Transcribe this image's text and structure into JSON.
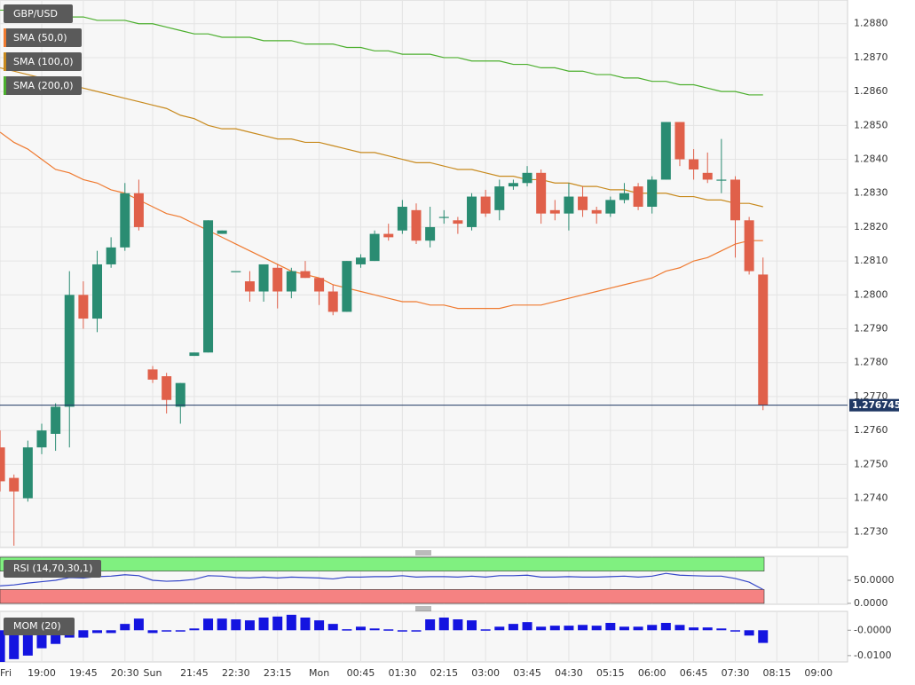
{
  "chart_data": [
    {
      "type": "candlestick",
      "symbol": "GBP/USD",
      "categories": [
        "Fri",
        null,
        null,
        "19:00",
        null,
        null,
        "19:45",
        null,
        null,
        "20:30",
        null,
        "Sun",
        null,
        null,
        "21:45",
        null,
        null,
        "22:30",
        null,
        null,
        "23:15",
        null,
        null,
        "Mon",
        null,
        null,
        "00:45",
        null,
        null,
        "01:30",
        null,
        null,
        "02:15",
        null,
        null,
        "03:00",
        null,
        null,
        "03:45",
        null,
        null,
        "04:30",
        null,
        null,
        "05:15",
        null,
        null,
        "06:00",
        null,
        null,
        "06:45",
        null,
        null,
        "07:30",
        null,
        null,
        "08:15",
        null,
        null,
        "09:00"
      ],
      "open": [
        1.2755,
        1.2746,
        1.274,
        1.2755,
        1.2759,
        1.2767,
        1.28,
        1.2793,
        1.2809,
        1.2814,
        1.283,
        1.2778,
        1.2776,
        1.2767,
        1.2782,
        1.2783,
        1.2818,
        1.2807,
        1.2804,
        1.2801,
        1.2808,
        1.2801,
        1.2807,
        1.2805,
        1.2801,
        1.2795,
        1.2809,
        1.281,
        1.2818,
        1.2819,
        1.2825,
        1.2816,
        1.2823,
        1.2822,
        1.282,
        1.2829,
        1.2825,
        1.2832,
        1.2833,
        1.2836,
        1.2825,
        1.2824,
        1.2829,
        1.2825,
        1.2824,
        1.2828,
        1.2832,
        1.2826,
        1.2834,
        1.2851,
        1.284,
        1.2836,
        1.2834,
        1.2834,
        1.2822,
        1.2806,
        null,
        null,
        null,
        null
      ],
      "high": [
        1.276,
        1.2747,
        1.2757,
        1.2762,
        1.2768,
        1.2807,
        1.2804,
        1.2813,
        1.2817,
        1.2833,
        1.2834,
        1.2779,
        1.2777,
        1.2774,
        1.2783,
        1.2822,
        1.2819,
        1.2807,
        1.2807,
        1.2809,
        1.2809,
        1.2808,
        1.281,
        1.2805,
        1.2803,
        1.281,
        1.2812,
        1.2819,
        1.2821,
        1.2828,
        1.2827,
        1.2826,
        1.2825,
        1.2823,
        1.283,
        1.2831,
        1.2834,
        1.2834,
        1.2838,
        1.2837,
        1.2828,
        1.2833,
        1.2832,
        1.2826,
        1.2829,
        1.2833,
        1.2833,
        1.2835,
        1.2851,
        1.2851,
        1.2843,
        1.2842,
        1.2846,
        1.2835,
        1.2823,
        1.2811,
        null,
        null,
        null,
        null
      ],
      "low": [
        1.2742,
        1.2726,
        1.2739,
        1.2753,
        1.2754,
        1.2755,
        1.279,
        1.2789,
        1.2808,
        1.2813,
        1.2819,
        1.2774,
        1.2765,
        1.2762,
        1.2782,
        1.2783,
        1.2818,
        1.2807,
        1.2798,
        1.2798,
        1.2796,
        1.2799,
        1.2805,
        1.2797,
        1.2794,
        1.2795,
        1.2808,
        1.281,
        1.2816,
        1.2818,
        1.2815,
        1.2814,
        1.2821,
        1.2818,
        1.2819,
        1.2823,
        1.2822,
        1.2831,
        1.2832,
        1.2821,
        1.2822,
        1.2819,
        1.2823,
        1.2821,
        1.2823,
        1.2827,
        1.2825,
        1.2824,
        1.2834,
        1.2838,
        1.2834,
        1.2833,
        1.283,
        1.2811,
        1.2806,
        1.2766,
        null,
        null,
        null,
        null
      ],
      "close": [
        1.2745,
        1.2742,
        1.2755,
        1.276,
        1.2767,
        1.28,
        1.2793,
        1.2809,
        1.2814,
        1.283,
        1.282,
        1.2775,
        1.2769,
        1.2774,
        1.2783,
        1.2822,
        1.2819,
        1.2807,
        1.2801,
        1.2809,
        1.2801,
        1.2807,
        1.2805,
        1.2801,
        1.2795,
        1.281,
        1.2811,
        1.2818,
        1.2817,
        1.2826,
        1.2816,
        1.282,
        1.2823,
        1.2821,
        1.2829,
        1.2824,
        1.2832,
        1.2833,
        1.2836,
        1.2824,
        1.2824,
        1.2829,
        1.2825,
        1.2824,
        1.2828,
        1.283,
        1.2826,
        1.2834,
        1.2851,
        1.284,
        1.2837,
        1.2834,
        1.2834,
        1.2822,
        1.2807,
        1.276745,
        null,
        null,
        null,
        null
      ],
      "up_color": "#2a8c72",
      "down_color": "#e0604a",
      "series": [
        {
          "name": "SMA (50,0)",
          "color": "#ef7a30",
          "values": [
            1.2848,
            1.2845,
            1.2843,
            1.284,
            1.2837,
            1.2836,
            1.2834,
            1.2833,
            1.2831,
            1.283,
            1.2828,
            1.2826,
            1.2824,
            1.2823,
            1.2821,
            1.2819,
            1.2817,
            1.2815,
            1.2813,
            1.2811,
            1.2809,
            1.2807,
            1.2806,
            1.2805,
            1.2803,
            1.2802,
            1.2801,
            1.28,
            1.2799,
            1.2798,
            1.2798,
            1.2797,
            1.2797,
            1.2796,
            1.2796,
            1.2796,
            1.2796,
            1.2797,
            1.2797,
            1.2797,
            1.2798,
            1.2799,
            1.28,
            1.2801,
            1.2802,
            1.2803,
            1.2804,
            1.2805,
            1.2807,
            1.2808,
            1.281,
            1.2811,
            1.2813,
            1.2815,
            1.2816,
            1.2816,
            null,
            null,
            null,
            null
          ]
        },
        {
          "name": "SMA (100,0)",
          "color": "#c88a1e",
          "values": [
            1.2867,
            1.2866,
            1.2865,
            1.2864,
            1.2863,
            1.2862,
            1.2861,
            1.286,
            1.2859,
            1.2858,
            1.2857,
            1.2856,
            1.2855,
            1.2853,
            1.2852,
            1.285,
            1.2849,
            1.2849,
            1.2848,
            1.2847,
            1.2846,
            1.2846,
            1.2845,
            1.2845,
            1.2844,
            1.2843,
            1.2842,
            1.2842,
            1.2841,
            1.284,
            1.2839,
            1.2839,
            1.2838,
            1.2837,
            1.2837,
            1.2836,
            1.2835,
            1.2835,
            1.2834,
            1.2834,
            1.2833,
            1.2833,
            1.2832,
            1.2832,
            1.2831,
            1.2831,
            1.283,
            1.283,
            1.283,
            1.2829,
            1.2829,
            1.2828,
            1.2828,
            1.2827,
            1.2827,
            1.2826,
            null,
            null,
            null,
            null
          ]
        },
        {
          "name": "SMA (200,0)",
          "color": "#4caf2e",
          "values": [
            1.2884,
            1.2884,
            1.2884,
            1.2883,
            1.2883,
            1.2882,
            1.2882,
            1.2881,
            1.2881,
            1.2881,
            1.288,
            1.288,
            1.2879,
            1.2878,
            1.2877,
            1.2877,
            1.2876,
            1.2876,
            1.2876,
            1.2875,
            1.2875,
            1.2875,
            1.2874,
            1.2874,
            1.2874,
            1.2873,
            1.2873,
            1.2872,
            1.2872,
            1.2871,
            1.2871,
            1.2871,
            1.287,
            1.287,
            1.2869,
            1.2869,
            1.2869,
            1.2868,
            1.2868,
            1.2867,
            1.2867,
            1.2866,
            1.2866,
            1.2865,
            1.2865,
            1.2864,
            1.2864,
            1.2863,
            1.2863,
            1.2862,
            1.2862,
            1.2861,
            1.286,
            1.286,
            1.2859,
            1.2859,
            null,
            null,
            null,
            null
          ]
        }
      ],
      "last_price": 1.276745,
      "last_price_color": "#1f3864",
      "ylim": [
        1.2726,
        1.2887
      ],
      "yticks": [
        {
          "value": 1.273,
          "label": "1.2730"
        },
        {
          "value": 1.274,
          "label": "1.2740"
        },
        {
          "value": 1.275,
          "label": "1.2750"
        },
        {
          "value": 1.276,
          "label": "1.2760"
        },
        {
          "value": 1.277,
          "label": "1.2770"
        },
        {
          "value": 1.278,
          "label": "1.2780"
        },
        {
          "value": 1.279,
          "label": "1.2790"
        },
        {
          "value": 1.28,
          "label": "1.2800"
        },
        {
          "value": 1.281,
          "label": "1.2810"
        },
        {
          "value": 1.282,
          "label": "1.2820"
        },
        {
          "value": 1.283,
          "label": "1.2830"
        },
        {
          "value": 1.284,
          "label": "1.2840"
        },
        {
          "value": 1.285,
          "label": "1.2850"
        },
        {
          "value": 1.286,
          "label": "1.2860"
        },
        {
          "value": 1.287,
          "label": "1.2870"
        },
        {
          "value": 1.288,
          "label": "1.2880"
        }
      ],
      "grid": true
    },
    {
      "type": "line",
      "title": "RSI (14,70,30,1)",
      "color": "#3446c8",
      "values": [
        38,
        40,
        44,
        47,
        50,
        56,
        55,
        58,
        59,
        62,
        60,
        50,
        48,
        49,
        52,
        60,
        59,
        56,
        55,
        57,
        55,
        57,
        56,
        55,
        53,
        57,
        57,
        58,
        58,
        60,
        57,
        58,
        58,
        57,
        59,
        57,
        60,
        60,
        61,
        57,
        57,
        58,
        57,
        57,
        58,
        59,
        57,
        59,
        65,
        61,
        60,
        59,
        59,
        54,
        46,
        30,
        null,
        null,
        null,
        null
      ],
      "bands": [
        {
          "from": 70,
          "to": 100,
          "color": "#80f080"
        },
        {
          "from": 0,
          "to": 30,
          "color": "#f58282"
        }
      ],
      "ylim": [
        0,
        100
      ],
      "yticks": [
        {
          "value": 50,
          "label": "50.0000"
        },
        {
          "value": 0,
          "label": "0.0000"
        }
      ]
    },
    {
      "type": "bar",
      "title": "MOM (20)",
      "color": "#1414e0",
      "values": [
        -0.0125,
        -0.0114,
        -0.01,
        -0.0071,
        -0.0054,
        -0.0029,
        -0.0029,
        -0.0011,
        -0.0011,
        0.0025,
        0.0046,
        -0.0011,
        -0.0004,
        -0.0004,
        0.0007,
        0.0046,
        0.0046,
        0.0043,
        0.0039,
        0.005,
        0.0054,
        0.0061,
        0.005,
        0.0039,
        0.0025,
        0.0004,
        0.0014,
        0.0007,
        0.0,
        -0.0004,
        -0.0004,
        0.0043,
        0.005,
        0.0043,
        0.0039,
        0.0,
        0.0014,
        0.0025,
        0.0032,
        0.0014,
        0.0018,
        0.0018,
        0.0021,
        0.0018,
        0.0029,
        0.0014,
        0.0014,
        0.0021,
        0.0029,
        0.0021,
        0.0011,
        0.0011,
        0.0007,
        -0.0004,
        -0.0021,
        -0.005,
        null,
        null,
        null,
        null
      ],
      "ylim": [
        -0.0125,
        0.0071
      ],
      "yticks": [
        {
          "value": 0,
          "label": "-0.0000"
        },
        {
          "value": -0.01,
          "label": "-0.0100"
        }
      ]
    }
  ]
}
